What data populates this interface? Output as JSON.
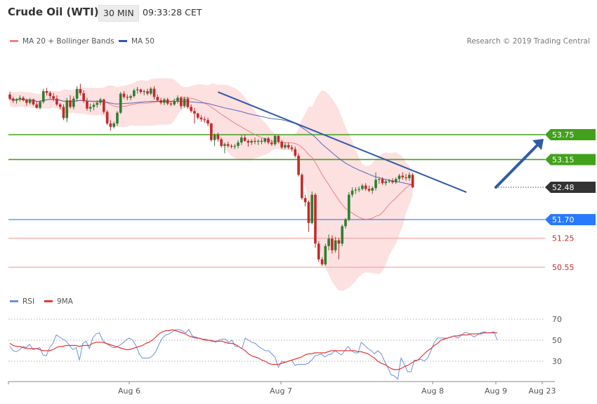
{
  "header": {
    "title": "Crude Oil (WTI)",
    "interval": "30 MIN",
    "time": "09:33:28 CET"
  },
  "legend": {
    "ma20_bb": "MA 20 + Bollinger Bands",
    "ma50": "MA 50",
    "rsi": "RSI",
    "ma9": "9MA"
  },
  "credit": "Research © 2019 Trading Central",
  "colors": {
    "up_candle": "#2f7d32",
    "down_candle": "#c62828",
    "bollinger_fill": "#fde0e0",
    "ma20": "#e57373",
    "ma50": "#3f51b5",
    "resistance": "#43a01c",
    "support": "#2979ff",
    "support_minor": "#f4a6a6",
    "last_price": "#333333",
    "trend_arrow": "#2f5aa8",
    "rsi": "#6d8fe0",
    "rsi_ma": "#e53935"
  },
  "chart_data": [
    {
      "type": "candlestick",
      "x_ticks": [
        "Aug 6",
        "Aug 7",
        "Aug 8",
        "Aug 9",
        "Aug 23"
      ],
      "price_levels": [
        {
          "value": 53.75,
          "label": "53.75",
          "kind": "resistance"
        },
        {
          "value": 53.15,
          "label": "53.15",
          "kind": "resistance"
        },
        {
          "value": 52.48,
          "label": "52.48",
          "kind": "last"
        },
        {
          "value": 51.7,
          "label": "51.70",
          "kind": "support"
        },
        {
          "value": 51.25,
          "label": "51.25",
          "kind": "support_minor"
        },
        {
          "value": 50.55,
          "label": "50.55",
          "kind": "support_minor"
        }
      ],
      "ylim": [
        50.1,
        55.45
      ],
      "ohlc": [
        [
          54.72,
          54.78,
          54.58,
          54.62
        ],
        [
          54.62,
          54.66,
          54.52,
          54.57
        ],
        [
          54.57,
          54.63,
          54.5,
          54.6
        ],
        [
          54.6,
          54.7,
          54.55,
          54.64
        ],
        [
          54.64,
          54.68,
          54.55,
          54.58
        ],
        [
          54.58,
          54.62,
          54.45,
          54.52
        ],
        [
          54.52,
          54.64,
          54.48,
          54.6
        ],
        [
          54.6,
          54.62,
          54.45,
          54.48
        ],
        [
          54.48,
          54.56,
          54.38,
          54.4
        ],
        [
          54.4,
          54.58,
          54.36,
          54.54
        ],
        [
          54.54,
          54.86,
          54.5,
          54.8
        ],
        [
          54.8,
          54.88,
          54.7,
          54.76
        ],
        [
          54.76,
          54.8,
          54.62,
          54.68
        ],
        [
          54.68,
          54.76,
          54.56,
          54.62
        ],
        [
          54.62,
          54.7,
          54.44,
          54.48
        ],
        [
          54.48,
          54.52,
          54.36,
          54.42
        ],
        [
          54.42,
          54.48,
          54.1,
          54.15
        ],
        [
          54.15,
          54.64,
          54.05,
          54.58
        ],
        [
          54.58,
          54.7,
          54.38,
          54.42
        ],
        [
          54.42,
          54.68,
          54.36,
          54.62
        ],
        [
          54.62,
          54.92,
          54.55,
          54.85
        ],
        [
          54.85,
          54.98,
          54.7,
          54.75
        ],
        [
          54.75,
          54.82,
          54.52,
          54.56
        ],
        [
          54.56,
          54.64,
          54.33,
          54.38
        ],
        [
          54.38,
          54.5,
          54.3,
          54.42
        ],
        [
          54.42,
          54.52,
          54.34,
          54.47
        ],
        [
          54.47,
          54.58,
          54.4,
          54.52
        ],
        [
          54.52,
          54.64,
          54.46,
          54.6
        ],
        [
          54.6,
          54.62,
          54.25,
          54.3
        ],
        [
          54.3,
          54.34,
          53.98,
          54.02
        ],
        [
          54.02,
          54.1,
          53.85,
          53.94
        ],
        [
          53.94,
          54.06,
          53.9,
          54.02
        ],
        [
          54.02,
          54.32,
          53.96,
          54.28
        ],
        [
          54.28,
          54.78,
          54.25,
          54.74
        ],
        [
          54.74,
          54.8,
          54.62,
          54.66
        ],
        [
          54.66,
          54.72,
          54.58,
          54.64
        ],
        [
          54.64,
          54.72,
          54.58,
          54.68
        ],
        [
          54.68,
          54.86,
          54.64,
          54.82
        ],
        [
          54.82,
          54.9,
          54.74,
          54.84
        ],
        [
          54.84,
          54.86,
          54.74,
          54.78
        ],
        [
          54.78,
          54.84,
          54.7,
          54.8
        ],
        [
          54.8,
          54.86,
          54.7,
          54.74
        ],
        [
          54.74,
          54.9,
          54.7,
          54.86
        ],
        [
          54.86,
          54.92,
          54.6,
          54.66
        ],
        [
          54.66,
          54.72,
          54.54,
          54.58
        ],
        [
          54.58,
          54.64,
          54.48,
          54.52
        ],
        [
          54.52,
          54.64,
          54.46,
          54.6
        ],
        [
          54.6,
          54.64,
          54.46,
          54.5
        ],
        [
          54.5,
          54.56,
          54.44,
          54.48
        ],
        [
          54.48,
          54.62,
          54.44,
          54.56
        ],
        [
          54.56,
          54.7,
          54.5,
          54.64
        ],
        [
          54.64,
          54.68,
          54.38,
          54.44
        ],
        [
          54.44,
          54.66,
          54.4,
          54.62
        ],
        [
          54.62,
          54.66,
          54.38,
          54.42
        ],
        [
          54.42,
          54.48,
          54.28,
          54.32
        ],
        [
          54.32,
          54.4,
          54.02,
          54.26
        ],
        [
          54.26,
          54.28,
          54.12,
          54.16
        ],
        [
          54.16,
          54.22,
          54.06,
          54.12
        ],
        [
          54.12,
          54.18,
          54.04,
          54.1
        ],
        [
          54.1,
          54.16,
          53.96,
          54.02
        ],
        [
          54.02,
          54.04,
          53.58,
          53.62
        ],
        [
          53.62,
          53.78,
          53.48,
          53.74
        ],
        [
          53.74,
          53.8,
          53.58,
          53.64
        ],
        [
          53.64,
          53.68,
          53.44,
          53.48
        ],
        [
          53.48,
          53.56,
          53.3,
          53.52
        ],
        [
          53.52,
          53.58,
          53.44,
          53.48
        ],
        [
          53.48,
          53.52,
          53.42,
          53.46
        ],
        [
          53.46,
          53.52,
          53.4,
          53.48
        ],
        [
          53.48,
          53.62,
          53.42,
          53.56
        ],
        [
          53.56,
          53.74,
          53.5,
          53.68
        ],
        [
          53.68,
          53.76,
          53.58,
          53.6
        ],
        [
          53.6,
          53.64,
          53.46,
          53.56
        ],
        [
          53.56,
          53.64,
          53.5,
          53.6
        ],
        [
          53.6,
          53.68,
          53.52,
          53.58
        ],
        [
          53.58,
          53.64,
          53.5,
          53.6
        ],
        [
          53.6,
          53.66,
          53.52,
          53.58
        ],
        [
          53.58,
          53.68,
          53.54,
          53.66
        ],
        [
          53.66,
          53.7,
          53.52,
          53.56
        ],
        [
          53.56,
          53.62,
          53.48,
          53.52
        ],
        [
          53.52,
          53.76,
          53.48,
          53.72
        ],
        [
          53.72,
          53.74,
          53.54,
          53.58
        ],
        [
          53.58,
          53.62,
          53.4,
          53.44
        ],
        [
          53.44,
          53.56,
          53.4,
          53.5
        ],
        [
          53.5,
          53.56,
          53.4,
          53.44
        ],
        [
          53.44,
          53.5,
          53.34,
          53.4
        ],
        [
          53.4,
          53.46,
          53.2,
          53.24
        ],
        [
          53.24,
          53.3,
          52.74,
          52.78
        ],
        [
          52.78,
          52.82,
          52.18,
          52.22
        ],
        [
          52.22,
          52.3,
          52.02,
          52.12
        ],
        [
          52.12,
          52.16,
          51.4,
          51.62
        ],
        [
          51.62,
          52.38,
          51.58,
          52.3
        ],
        [
          52.3,
          52.34,
          51.02,
          51.12
        ],
        [
          51.12,
          51.18,
          50.68,
          50.74
        ],
        [
          50.74,
          50.8,
          50.58,
          50.62
        ],
        [
          50.62,
          51.12,
          50.58,
          51.06
        ],
        [
          51.06,
          51.34,
          50.96,
          51.24
        ],
        [
          51.24,
          51.32,
          50.88,
          50.96
        ],
        [
          50.96,
          51.28,
          50.9,
          51.2
        ],
        [
          51.2,
          51.26,
          50.74,
          51.12
        ],
        [
          51.12,
          51.58,
          51.06,
          51.54
        ],
        [
          51.54,
          51.74,
          51.48,
          51.7
        ],
        [
          51.7,
          52.36,
          51.66,
          52.3
        ],
        [
          52.3,
          52.48,
          52.24,
          52.4
        ],
        [
          52.4,
          52.48,
          52.32,
          52.42
        ],
        [
          52.42,
          52.5,
          52.36,
          52.44
        ],
        [
          52.44,
          52.56,
          52.4,
          52.52
        ],
        [
          52.52,
          52.58,
          52.4,
          52.44
        ],
        [
          52.44,
          52.52,
          52.36,
          52.4
        ],
        [
          52.4,
          52.5,
          52.32,
          52.46
        ],
        [
          52.46,
          52.84,
          52.4,
          52.66
        ],
        [
          52.66,
          52.72,
          52.56,
          52.68
        ],
        [
          52.68,
          52.72,
          52.54,
          52.58
        ],
        [
          52.58,
          52.66,
          52.52,
          52.62
        ],
        [
          52.62,
          52.68,
          52.58,
          52.64
        ],
        [
          52.64,
          52.7,
          52.56,
          52.6
        ],
        [
          52.6,
          52.72,
          52.56,
          52.68
        ],
        [
          52.68,
          52.8,
          52.62,
          52.76
        ],
        [
          52.76,
          52.84,
          52.66,
          52.72
        ],
        [
          52.72,
          52.8,
          52.64,
          52.7
        ],
        [
          52.7,
          52.84,
          52.64,
          52.78
        ],
        [
          52.78,
          52.82,
          52.46,
          52.48
        ]
      ],
      "rsi_ticks": [
        70,
        50,
        30
      ],
      "rsi_ylim": [
        10,
        80
      ],
      "rsi_values": [
        44,
        40,
        39,
        41,
        44,
        43,
        46,
        41,
        42,
        43,
        36,
        35,
        43,
        47,
        55,
        53,
        51,
        49,
        45,
        41,
        43,
        31,
        47,
        49,
        42,
        52,
        56,
        57,
        50,
        47,
        45,
        43,
        43,
        45,
        47,
        50,
        52,
        50,
        45,
        37,
        33,
        33,
        33,
        35,
        39,
        46,
        52,
        55,
        56,
        58,
        60,
        60,
        59,
        57,
        60,
        54,
        53,
        52,
        51,
        51,
        50,
        50,
        48,
        50,
        51,
        51,
        48,
        50,
        44,
        44,
        42,
        52,
        50,
        48,
        47,
        44,
        42,
        40,
        40,
        37,
        34,
        24,
        30,
        29,
        30,
        31,
        26,
        27,
        27,
        27,
        28,
        31,
        35,
        36,
        37,
        34,
        36,
        37,
        40,
        38,
        36,
        40,
        44,
        40,
        38,
        38,
        48,
        45,
        42,
        40,
        37,
        40,
        37,
        30,
        24,
        17,
        16,
        13,
        33,
        27,
        20,
        20,
        31,
        31,
        32,
        30,
        33,
        40,
        48,
        52,
        52,
        52,
        52,
        53,
        54,
        52,
        54,
        57,
        57,
        55,
        53,
        55,
        57,
        58,
        57,
        57,
        58,
        50
      ],
      "rsi_ma9": [
        47,
        45,
        44,
        44,
        43,
        42,
        42,
        42,
        42,
        41,
        40,
        40,
        40,
        41,
        43,
        44,
        44,
        45,
        45,
        45,
        45,
        44,
        45,
        45,
        45,
        47,
        48,
        48,
        48,
        47,
        46,
        45,
        44,
        43,
        42,
        41,
        41,
        42,
        43,
        44,
        45,
        47,
        48,
        50,
        53,
        56,
        58,
        59,
        59,
        60,
        59,
        58,
        57,
        56,
        54,
        53,
        52,
        52,
        51,
        50,
        50,
        49,
        49,
        49,
        49,
        48,
        47,
        47,
        46,
        44,
        42,
        40,
        37,
        35,
        34,
        33,
        31,
        30,
        28,
        27,
        27,
        27,
        28,
        29,
        30,
        31,
        32,
        33,
        34,
        36,
        37,
        37,
        38,
        38,
        38,
        38,
        39,
        40,
        40,
        40,
        40,
        40,
        40,
        40,
        40,
        39,
        39,
        38,
        37,
        35,
        33,
        30,
        28,
        27,
        25,
        23,
        22,
        22,
        23,
        25,
        26,
        28,
        30,
        31,
        34,
        37,
        40,
        42,
        45,
        47,
        50,
        51,
        52,
        53,
        54,
        54,
        55,
        55,
        55,
        56,
        56,
        56,
        56,
        57,
        57,
        57,
        57,
        57
      ]
    }
  ]
}
